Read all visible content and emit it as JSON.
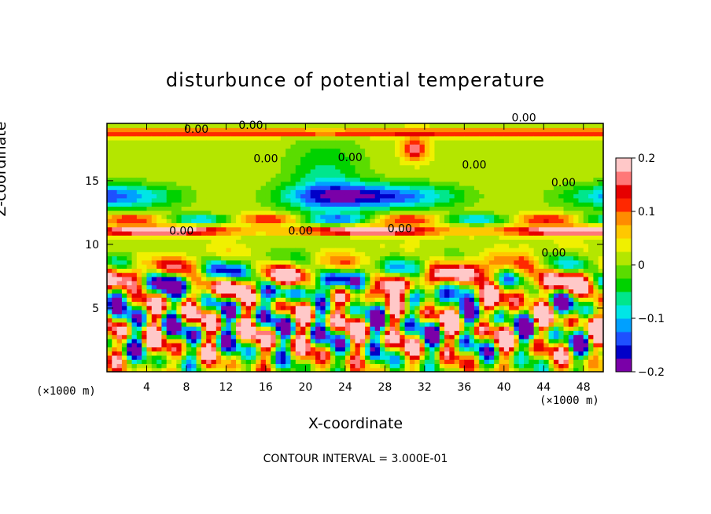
{
  "chart_data": {
    "type": "heatmap",
    "title": "disturbunce of potential temperature",
    "xlabel": "X-coordinate",
    "ylabel": "Z-coordinate",
    "x_unit": "(×1000 m)",
    "footer": "CONTOUR INTERVAL = 3.000E-01",
    "xlim": [
      0,
      50
    ],
    "ylim": [
      0,
      19.5
    ],
    "x_ticks": [
      4,
      8,
      12,
      16,
      20,
      24,
      28,
      32,
      36,
      40,
      44,
      48
    ],
    "y_ticks": [
      5,
      10,
      15
    ],
    "colorbar": {
      "range": [
        -0.2,
        0.2
      ],
      "tick_labels": [
        "0.2",
        "0.1",
        "0",
        "−0.1",
        "−0.2"
      ],
      "tick_values": [
        0.2,
        0.1,
        0,
        -0.1,
        -0.2
      ],
      "colors": [
        "#7a00a8",
        "#0000c8",
        "#1e50ff",
        "#00a0ff",
        "#00e6e6",
        "#00e68c",
        "#00d200",
        "#5adc00",
        "#b4e600",
        "#f0f000",
        "#ffc800",
        "#ff8c00",
        "#ff2800",
        "#e60000",
        "#ff7878",
        "#ffc8c8"
      ]
    },
    "contour_labels": [
      {
        "text": "0.00",
        "x": 9,
        "y": 19
      },
      {
        "text": "0.00",
        "x": 14.5,
        "y": 19.3
      },
      {
        "text": "0.00",
        "x": 16,
        "y": 16.7
      },
      {
        "text": "0.00",
        "x": 24.5,
        "y": 16.8
      },
      {
        "text": "0.00",
        "x": 37,
        "y": 16.2
      },
      {
        "text": "0.00",
        "x": 46,
        "y": 14.8
      },
      {
        "text": "0.00",
        "x": 7.5,
        "y": 11
      },
      {
        "text": "0.00",
        "x": 19.5,
        "y": 11
      },
      {
        "text": "0.00",
        "x": 29.5,
        "y": 11.2
      },
      {
        "text": "0.00",
        "x": 45,
        "y": 9.3
      },
      {
        "text": "0.00",
        "x": 42,
        "y": 19.9
      }
    ]
  }
}
